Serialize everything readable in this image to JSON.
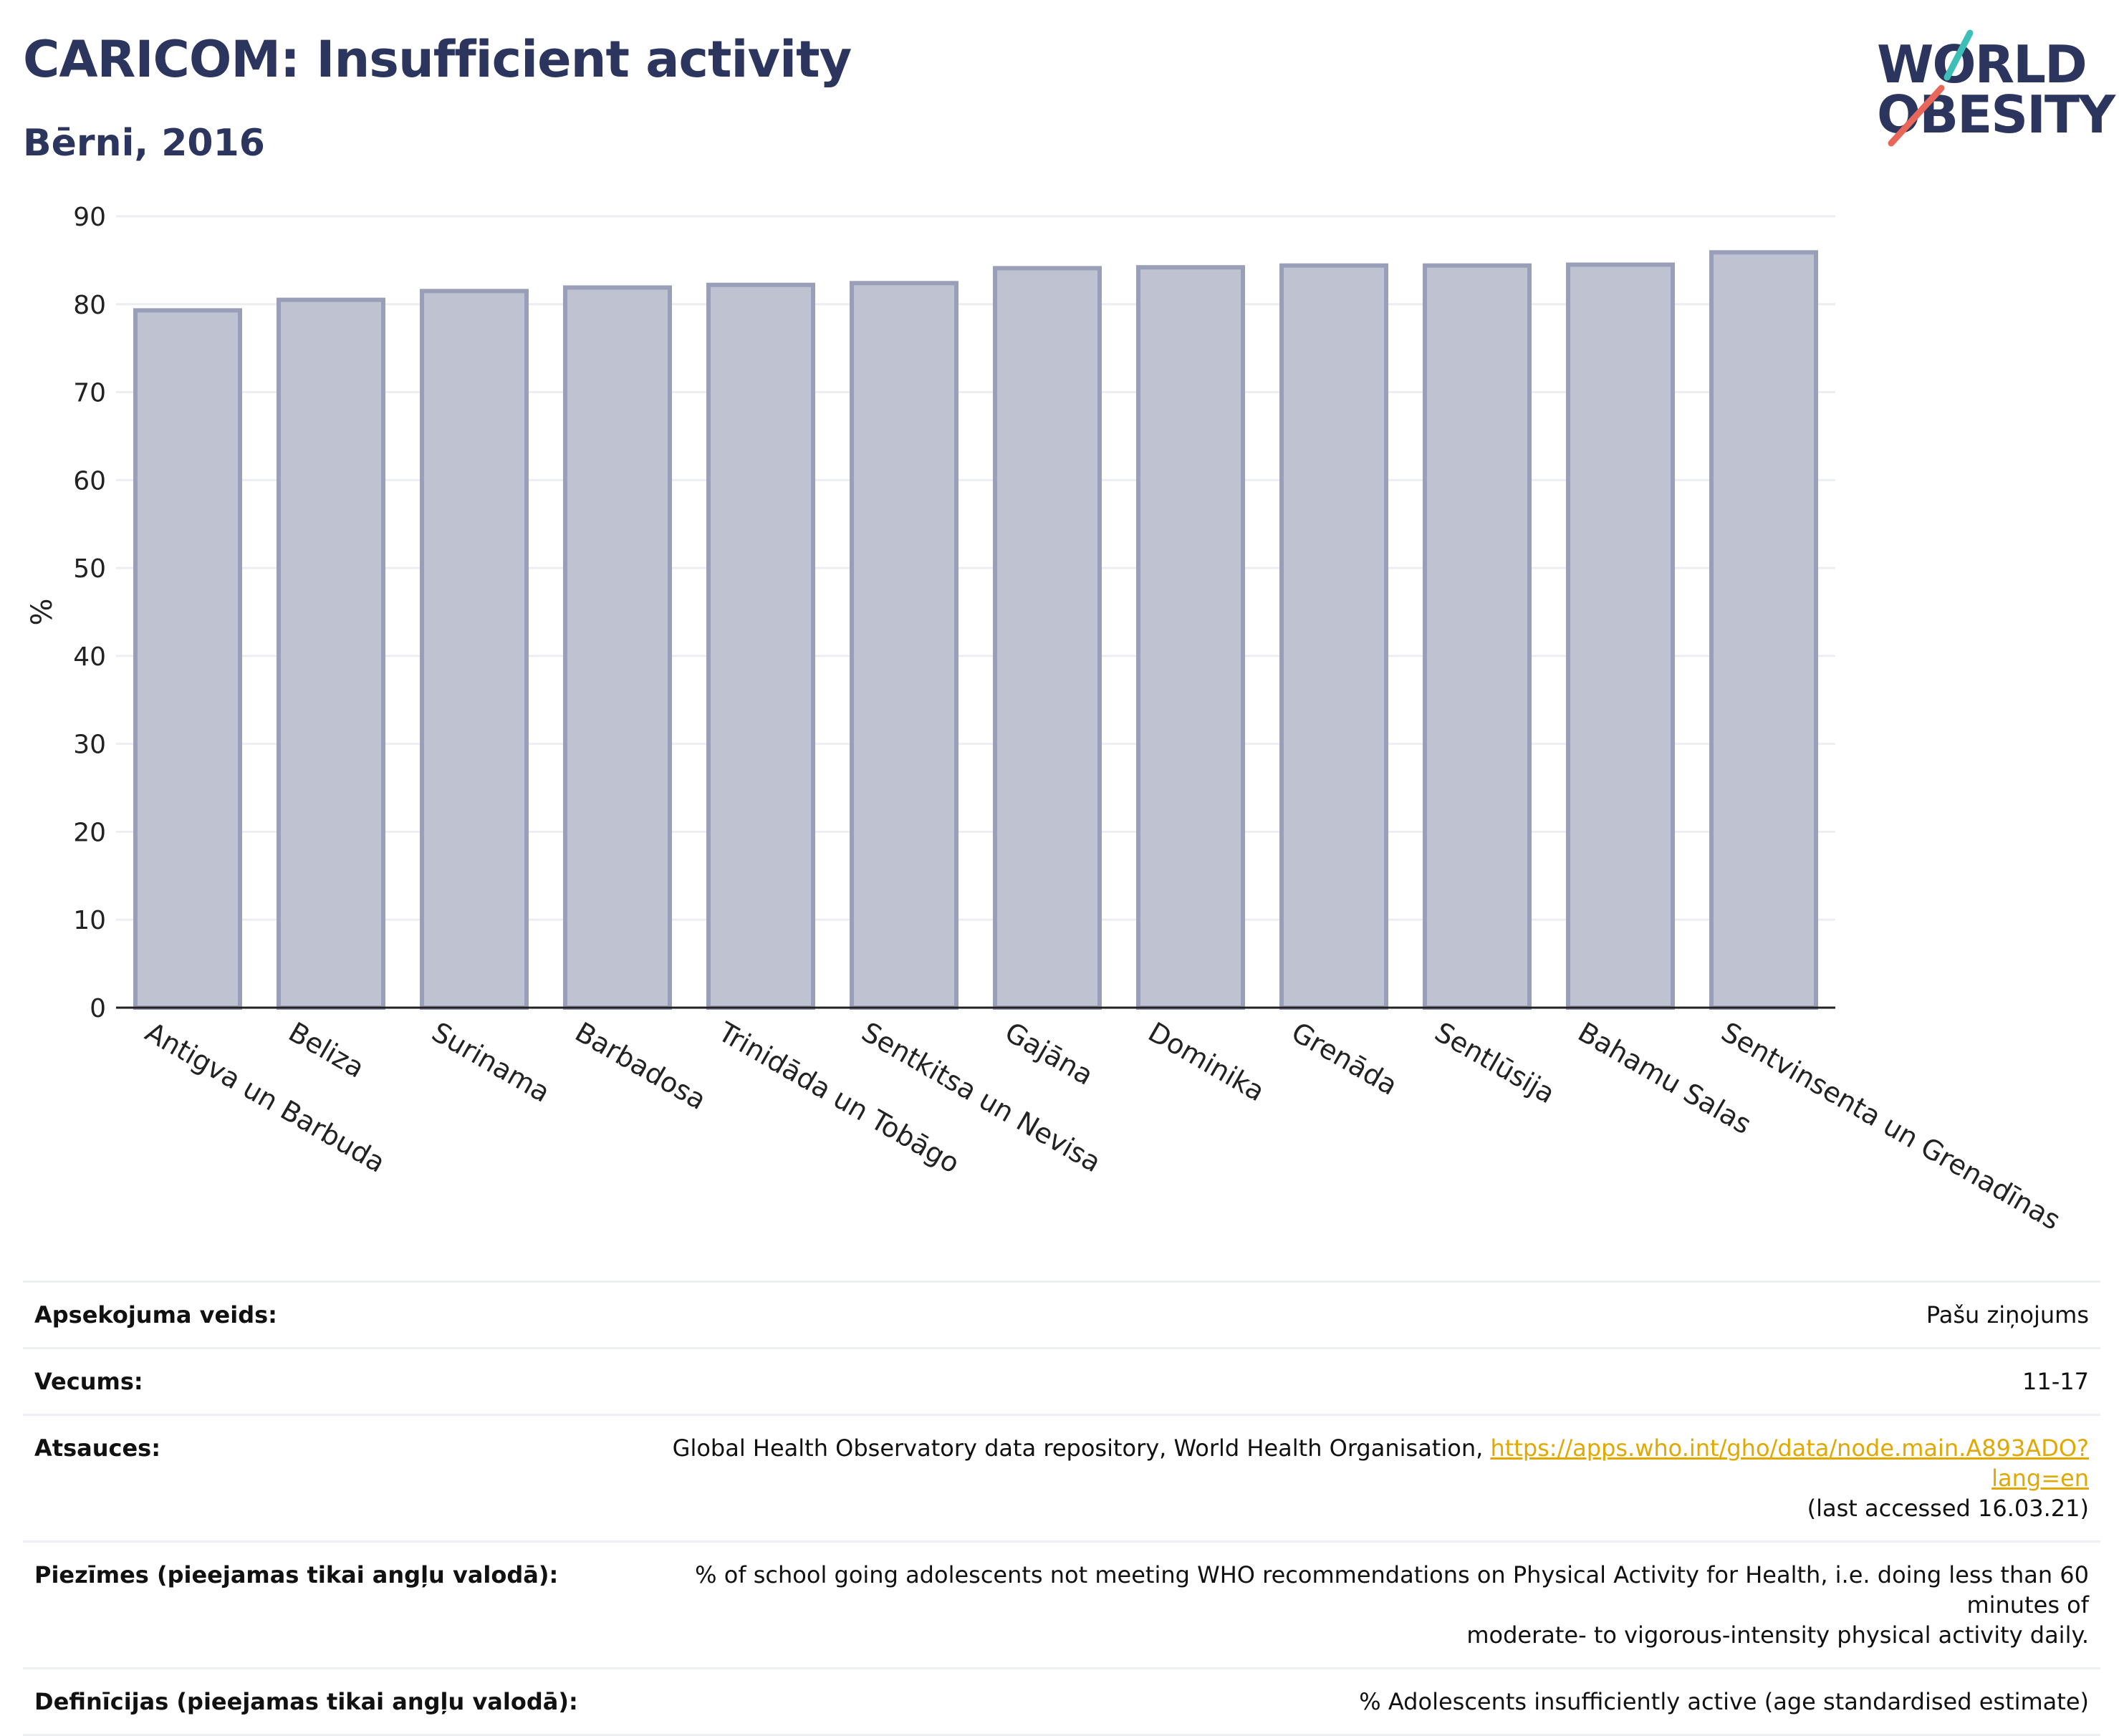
{
  "header": {
    "title": "CARICOM: Insufficient activity",
    "subtitle": "Bērni, 2016"
  },
  "logo": {
    "line1": "WORLD",
    "line2": "OBESITY",
    "slash_colors": [
      "#3dbfb8",
      "#e8675a"
    ]
  },
  "colors": {
    "bar_fill": "#bfc2d0",
    "bar_stroke": "#9a9fb9",
    "axis": "#222222",
    "grid": "#eceef2",
    "title": "#2b355e",
    "link": "#e0a800"
  },
  "chart_data": {
    "type": "bar",
    "title": "CARICOM: Insufficient activity",
    "subtitle": "Bērni, 2016",
    "ylabel": "%",
    "xlabel": "",
    "ylim": [
      0,
      90
    ],
    "yticks": [
      0,
      10,
      20,
      30,
      40,
      50,
      60,
      70,
      80,
      90
    ],
    "grid": true,
    "categories": [
      "Antigva un Barbuda",
      "Beliza",
      "Surinama",
      "Barbadosa",
      "Trinidāda un Tobāgo",
      "Sentkitsa un Nevisa",
      "Gajāna",
      "Dominika",
      "Grenāda",
      "Sentlūsija",
      "Bahamu Salas",
      "Sentvinsenta un Grenadīnas"
    ],
    "values": [
      79.3,
      80.5,
      81.5,
      81.9,
      82.2,
      82.4,
      84.1,
      84.2,
      84.4,
      84.4,
      84.5,
      85.9
    ]
  },
  "meta": {
    "survey_type": {
      "label": "Apsekojuma veids:",
      "value": "Pašu ziņojums"
    },
    "age": {
      "label": "Vecums:",
      "value": "11-17"
    },
    "references": {
      "label": "Atsauces:",
      "text": "Global Health Observatory data repository, World Health Organisation,",
      "url": "https://apps.who.int/gho/data/node.main.A893ADO?lang=en",
      "accessed": "(last accessed 16.03.21)"
    },
    "notes": {
      "label": "Piezīmes (pieejamas tikai angļu valodā):",
      "line1": "% of school going adolescents not meeting WHO recommendations on Physical Activity for Health, i.e. doing less than 60 minutes of",
      "line2": "moderate- to vigorous-intensity physical activity daily."
    },
    "definitions": {
      "label": "Definīcijas (pieejamas tikai angļu valodā):",
      "value": "% Adolescents insufficiently active (age standardised estimate)"
    }
  }
}
